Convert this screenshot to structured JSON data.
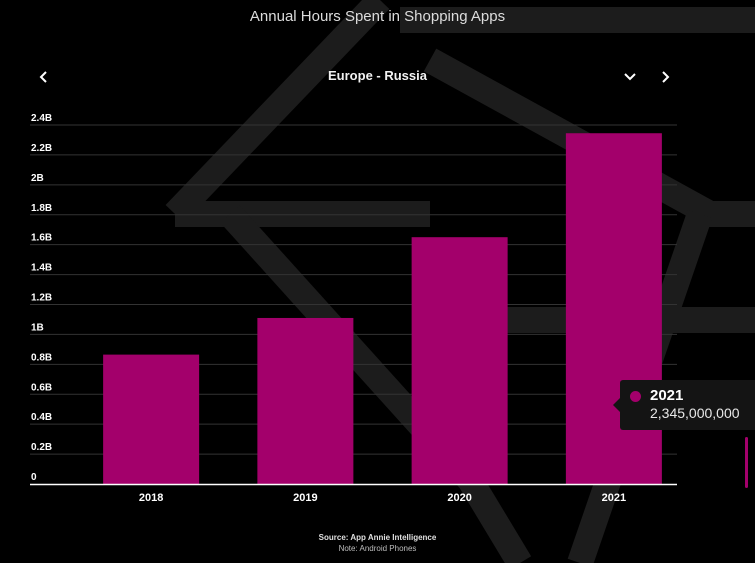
{
  "header": {
    "title": "Annual Hours Spent in Shopping Apps",
    "region": "Europe - Russia",
    "prev_icon": "chevron-left-icon",
    "dropdown_icon": "chevron-down-icon",
    "next_icon": "chevron-right-icon"
  },
  "chart_data": {
    "type": "bar",
    "categories": [
      "2018",
      "2019",
      "2020",
      "2021"
    ],
    "values": [
      865000000,
      1110000000,
      1650000000,
      2345000000
    ],
    "ylim": [
      0,
      2400000000
    ],
    "yticks": [
      {
        "value": 0,
        "label": "0"
      },
      {
        "value": 200000000,
        "label": "0.2B"
      },
      {
        "value": 400000000,
        "label": "0.4B"
      },
      {
        "value": 600000000,
        "label": "0.6B"
      },
      {
        "value": 800000000,
        "label": "0.8B"
      },
      {
        "value": 1000000000,
        "label": "1B"
      },
      {
        "value": 1200000000,
        "label": "1.2B"
      },
      {
        "value": 1400000000,
        "label": "1.4B"
      },
      {
        "value": 1600000000,
        "label": "1.6B"
      },
      {
        "value": 1800000000,
        "label": "1.8B"
      },
      {
        "value": 2000000000,
        "label": "2B"
      },
      {
        "value": 2200000000,
        "label": "2.2B"
      },
      {
        "value": 2400000000,
        "label": "2.4B"
      }
    ],
    "grid": true,
    "bar_color": "#a3006b",
    "grid_color": "#333333",
    "axis_color": "#ffffff"
  },
  "tooltip": {
    "year": "2021",
    "value": "2,345,000,000",
    "color": "#a3006b"
  },
  "footer": {
    "source": "Source: App Annie Intelligence",
    "note": "Note: Android Phones"
  }
}
